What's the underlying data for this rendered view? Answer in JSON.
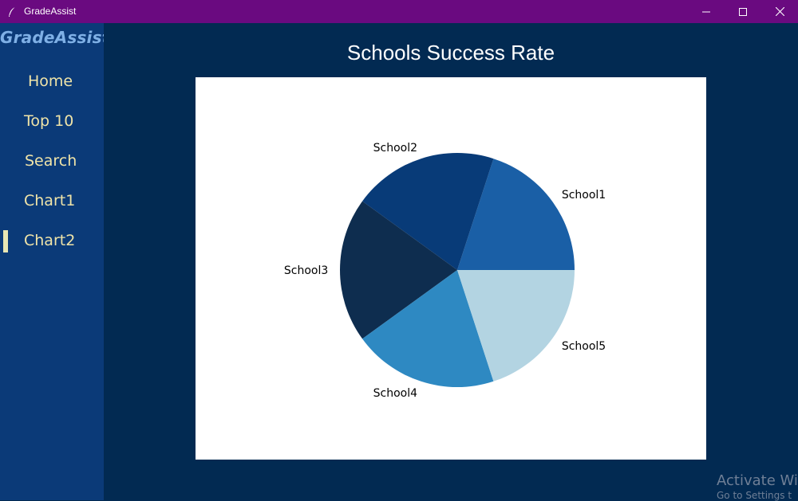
{
  "window": {
    "title": "GradeAssist",
    "icon": "feather-icon",
    "buttons": [
      "minimize-icon",
      "maximize-icon",
      "close-icon"
    ]
  },
  "sidebar": {
    "logo": "GradeAssist",
    "items": [
      {
        "label": "Home",
        "active": false
      },
      {
        "label": "Top 10",
        "active": false
      },
      {
        "label": "Search",
        "active": false
      },
      {
        "label": "Chart1",
        "active": false
      },
      {
        "label": "Chart2",
        "active": true
      }
    ]
  },
  "main": {
    "heading": "Schools Success Rate"
  },
  "chart_data": {
    "type": "pie",
    "title": "Schools Success Rate",
    "categories": [
      "School1",
      "School2",
      "School3",
      "School4",
      "School5"
    ],
    "values": [
      20,
      20,
      20,
      20,
      20
    ],
    "colors": [
      "#1a5fa6",
      "#083b78",
      "#0e2d4f",
      "#2e89c2",
      "#b3d4e2"
    ],
    "start_angle_deg": 0,
    "direction": "counterclockwise",
    "legend": "none"
  },
  "watermark": {
    "title": "Activate Wi",
    "subtitle": "Go to Settings t"
  },
  "colors": {
    "titlebar": "#6a0a80",
    "sidebar": "#0b3a78",
    "background": "#022a52",
    "nav_text": "#f0e4a8",
    "logo_text": "#7fb0e6"
  }
}
